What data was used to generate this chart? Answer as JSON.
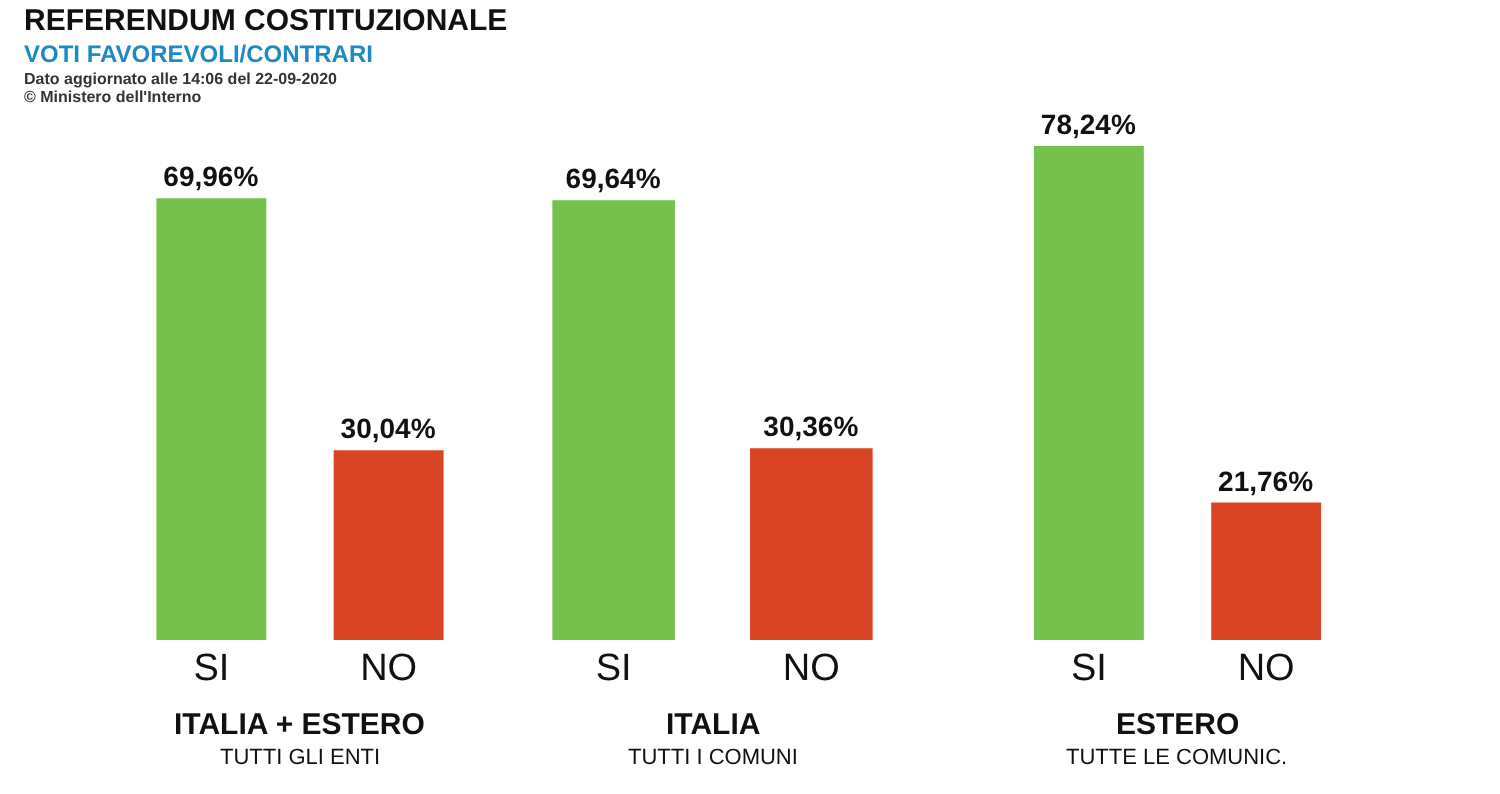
{
  "chart_data": [
    {
      "type": "other",
      "title": "REFERENDUM COSTITUZIONALE",
      "subtitle": "VOTI FAVOREVOLI/CONTRARI",
      "annotations": [
        "Dato aggiornato alle 14:06 del 22-09-2020",
        "© Ministero dell'Interno"
      ]
    },
    {
      "type": "bar",
      "categories": [
        "SI",
        "NO"
      ],
      "values": [
        69.96,
        30.04
      ],
      "colors": [
        "#76c04e",
        "#d94425"
      ],
      "value_labels": [
        "69,96%",
        "30,04%"
      ],
      "xlabel": "ITALIA + ESTERO",
      "subtitle": "TUTTI GLI ENTI",
      "tick_labels": "x"
    },
    {
      "type": "bar",
      "categories": [
        "SI",
        "NO"
      ],
      "values": [
        69.64,
        30.36
      ],
      "colors": [
        "#76c04e",
        "#d94425"
      ],
      "value_labels": [
        "69,64%",
        "30,36%"
      ],
      "xlabel": "ITALIA",
      "subtitle": "TUTTI I COMUNI",
      "tick_labels": "x"
    },
    {
      "type": "bar",
      "categories": [
        "SI",
        "NO"
      ],
      "values": [
        78.24,
        21.76
      ],
      "colors": [
        "#76c04e",
        "#d94425"
      ],
      "value_labels": [
        "78,24%",
        "21,76%"
      ],
      "xlabel": "ESTERO",
      "subtitle": "TUTTE LE COMUNIC.",
      "tick_labels": "x"
    }
  ]
}
